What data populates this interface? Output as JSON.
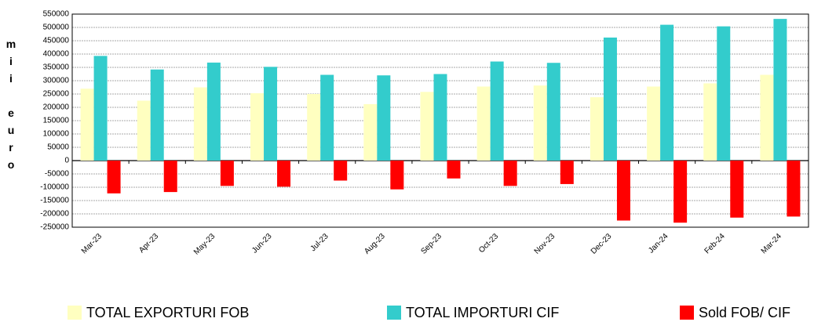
{
  "chart_data": {
    "type": "bar",
    "ylabel": "mii euro",
    "categories": [
      "Mar-23",
      "Apr-23",
      "May-23",
      "Jun-23",
      "Jul-23",
      "Aug-23",
      "Sep-23",
      "Oct-23",
      "Nov-23",
      "Dec-23",
      "Jan-24",
      "Feb-24",
      "Mar-24"
    ],
    "series": [
      {
        "name": "TOTAL EXPORTURI FOB",
        "color": "#ffffc0",
        "values": [
          270000,
          225000,
          275000,
          253000,
          250000,
          212000,
          258000,
          278000,
          282000,
          238000,
          278000,
          290000,
          322000
        ]
      },
      {
        "name": "TOTAL IMPORTURI CIF",
        "color": "#33cccc",
        "values": [
          393000,
          342000,
          368000,
          352000,
          322000,
          320000,
          325000,
          372000,
          367000,
          462000,
          510000,
          504000,
          532000
        ]
      },
      {
        "name": "Sold FOB/ CIF",
        "color": "#ff0000",
        "values": [
          -123000,
          -118000,
          -95000,
          -98000,
          -75000,
          -108000,
          -67000,
          -95000,
          -88000,
          -225000,
          -233000,
          -214000,
          -210000
        ]
      }
    ],
    "ylim": [
      -250000,
      550000
    ],
    "yticks": [
      -250000,
      -200000,
      -150000,
      -100000,
      -50000,
      0,
      50000,
      100000,
      150000,
      200000,
      250000,
      300000,
      350000,
      400000,
      450000,
      500000,
      550000
    ],
    "grid": true
  }
}
